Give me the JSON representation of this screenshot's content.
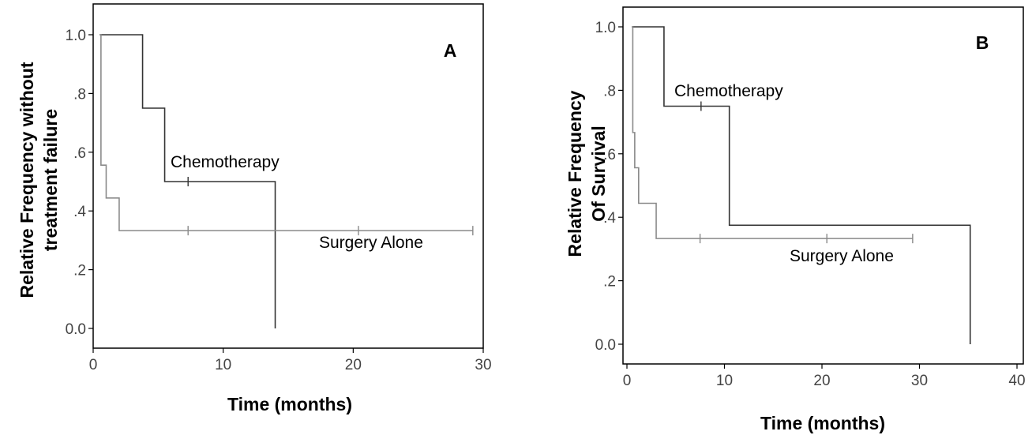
{
  "chart_data": [
    {
      "type": "line",
      "panel_label": "A",
      "xlabel": "Time (months)",
      "ylabel": [
        "Relative Frequency without",
        "treatment failure"
      ],
      "xlim": [
        0,
        30
      ],
      "ylim": [
        0,
        1
      ],
      "x_ticks": [
        "0",
        "10",
        "20",
        "30"
      ],
      "y_ticks": [
        "0.0",
        ".2",
        ".4",
        ".6",
        ".8",
        "1.0"
      ],
      "series": [
        {
          "name": "Chemotherapy",
          "color": "#333333",
          "steps": [
            [
              0.5,
              1.0
            ],
            [
              3.8,
              0.75
            ],
            [
              5.5,
              0.5
            ],
            [
              14.0,
              0.0
            ]
          ],
          "end_x": 14.0,
          "censor_marks": [
            [
              7.3,
              0.5
            ]
          ]
        },
        {
          "name": "Surgery Alone",
          "color": "#8a8a8a",
          "steps": [
            [
              0.5,
              1.0
            ],
            [
              0.6,
              0.556
            ],
            [
              1.0,
              0.444
            ],
            [
              2.0,
              0.333
            ]
          ],
          "end_x": 29.2,
          "censor_marks": [
            [
              7.3,
              0.333
            ],
            [
              20.4,
              0.333
            ],
            [
              29.2,
              0.333
            ]
          ]
        }
      ]
    },
    {
      "type": "line",
      "panel_label": "B",
      "xlabel": "Time (months)",
      "ylabel": [
        "Relative Frequency",
        "Of Survival"
      ],
      "xlim": [
        0,
        40
      ],
      "ylim": [
        0,
        1
      ],
      "x_ticks": [
        "0",
        "10",
        "20",
        "30",
        "40"
      ],
      "y_ticks": [
        "0.0",
        ".2",
        ".4",
        ".6",
        ".8",
        "1.0"
      ],
      "series": [
        {
          "name": "Chemotherapy",
          "color": "#333333",
          "steps": [
            [
              0.5,
              1.0
            ],
            [
              3.8,
              0.75
            ],
            [
              10.5,
              0.375
            ],
            [
              35.2,
              0.0
            ]
          ],
          "end_x": 35.2,
          "censor_marks": [
            [
              7.6,
              0.75
            ]
          ]
        },
        {
          "name": "Surgery Alone",
          "color": "#8a8a8a",
          "steps": [
            [
              0.5,
              1.0
            ],
            [
              0.6,
              0.667
            ],
            [
              0.8,
              0.556
            ],
            [
              1.2,
              0.444
            ],
            [
              3.0,
              0.333
            ]
          ],
          "end_x": 29.3,
          "censor_marks": [
            [
              7.5,
              0.333
            ],
            [
              20.5,
              0.333
            ],
            [
              29.3,
              0.333
            ]
          ]
        }
      ]
    }
  ]
}
